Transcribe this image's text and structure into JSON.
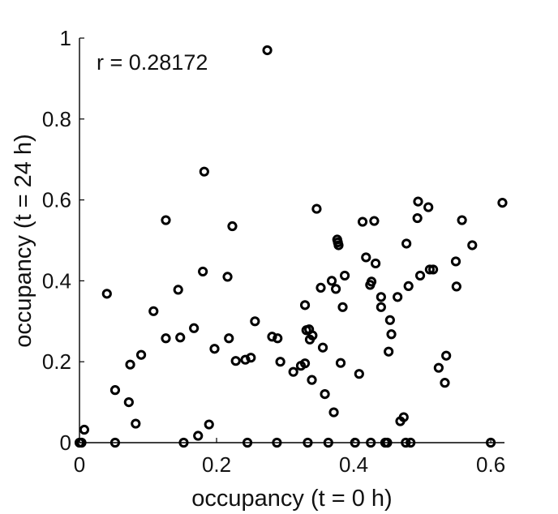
{
  "chart_data": {
    "type": "scatter",
    "xlabel": "occupancy (t = 0 h)",
    "ylabel": "occupancy (t = 24 h)",
    "annotation": "r = 0.28172",
    "xlim": [
      0,
      0.62
    ],
    "ylim": [
      0,
      1
    ],
    "xticks": [
      0,
      0.2,
      0.4,
      0.6
    ],
    "xtick_labels": [
      "0",
      "0.2",
      "0.4",
      "0.6"
    ],
    "yticks": [
      0,
      0.2,
      0.4,
      0.6,
      0.8,
      1
    ],
    "ytick_labels": [
      "0",
      "0.2",
      "0.4",
      "0.6",
      "0.8",
      "1"
    ],
    "grid": false,
    "marker": "circle-open",
    "color": "#000000",
    "points": [
      {
        "x": 0,
        "y": 0
      },
      {
        "x": 0.003,
        "y": 0
      },
      {
        "x": 0.007,
        "y": 0.032
      },
      {
        "x": 0.04,
        "y": 0.368
      },
      {
        "x": 0.052,
        "y": 0.13
      },
      {
        "x": 0.052,
        "y": 0
      },
      {
        "x": 0.072,
        "y": 0.1
      },
      {
        "x": 0.074,
        "y": 0.193
      },
      {
        "x": 0.082,
        "y": 0.047
      },
      {
        "x": 0.09,
        "y": 0.217
      },
      {
        "x": 0.108,
        "y": 0.325
      },
      {
        "x": 0.126,
        "y": 0.55
      },
      {
        "x": 0.126,
        "y": 0.258
      },
      {
        "x": 0.144,
        "y": 0.378
      },
      {
        "x": 0.147,
        "y": 0.26
      },
      {
        "x": 0.152,
        "y": 0
      },
      {
        "x": 0.167,
        "y": 0.283
      },
      {
        "x": 0.173,
        "y": 0.017
      },
      {
        "x": 0.18,
        "y": 0.423
      },
      {
        "x": 0.182,
        "y": 0.67
      },
      {
        "x": 0.189,
        "y": 0.045
      },
      {
        "x": 0.197,
        "y": 0.232
      },
      {
        "x": 0.216,
        "y": 0.41
      },
      {
        "x": 0.218,
        "y": 0.258
      },
      {
        "x": 0.223,
        "y": 0.535
      },
      {
        "x": 0.228,
        "y": 0.202
      },
      {
        "x": 0.242,
        "y": 0.205
      },
      {
        "x": 0.245,
        "y": 0
      },
      {
        "x": 0.25,
        "y": 0.21
      },
      {
        "x": 0.256,
        "y": 0.3
      },
      {
        "x": 0.274,
        "y": 0.97
      },
      {
        "x": 0.281,
        "y": 0.262
      },
      {
        "x": 0.288,
        "y": 0
      },
      {
        "x": 0.289,
        "y": 0.258
      },
      {
        "x": 0.293,
        "y": 0.2
      },
      {
        "x": 0.312,
        "y": 0.175
      },
      {
        "x": 0.323,
        "y": 0.19
      },
      {
        "x": 0.329,
        "y": 0.34
      },
      {
        "x": 0.329,
        "y": 0.196
      },
      {
        "x": 0.331,
        "y": 0.278
      },
      {
        "x": 0.333,
        "y": 0
      },
      {
        "x": 0.335,
        "y": 0.28
      },
      {
        "x": 0.336,
        "y": 0.255
      },
      {
        "x": 0.339,
        "y": 0.155
      },
      {
        "x": 0.34,
        "y": 0.265
      },
      {
        "x": 0.346,
        "y": 0.578
      },
      {
        "x": 0.352,
        "y": 0.383
      },
      {
        "x": 0.355,
        "y": 0.235
      },
      {
        "x": 0.358,
        "y": 0.12
      },
      {
        "x": 0.363,
        "y": 0
      },
      {
        "x": 0.368,
        "y": 0.4
      },
      {
        "x": 0.371,
        "y": 0.075
      },
      {
        "x": 0.374,
        "y": 0.38
      },
      {
        "x": 0.376,
        "y": 0.502
      },
      {
        "x": 0.377,
        "y": 0.495
      },
      {
        "x": 0.378,
        "y": 0.488
      },
      {
        "x": 0.381,
        "y": 0.197
      },
      {
        "x": 0.384,
        "y": 0.335
      },
      {
        "x": 0.387,
        "y": 0.413
      },
      {
        "x": 0.402,
        "y": 0
      },
      {
        "x": 0.408,
        "y": 0.17
      },
      {
        "x": 0.413,
        "y": 0.546
      },
      {
        "x": 0.418,
        "y": 0.458
      },
      {
        "x": 0.424,
        "y": 0.39
      },
      {
        "x": 0.425,
        "y": 0
      },
      {
        "x": 0.426,
        "y": 0.398
      },
      {
        "x": 0.43,
        "y": 0.548
      },
      {
        "x": 0.432,
        "y": 0.443
      },
      {
        "x": 0.44,
        "y": 0.36
      },
      {
        "x": 0.44,
        "y": 0.335
      },
      {
        "x": 0.446,
        "y": 0
      },
      {
        "x": 0.449,
        "y": 0
      },
      {
        "x": 0.451,
        "y": 0.225
      },
      {
        "x": 0.453,
        "y": 0.303
      },
      {
        "x": 0.455,
        "y": 0.268
      },
      {
        "x": 0.464,
        "y": 0.36
      },
      {
        "x": 0.468,
        "y": 0.053
      },
      {
        "x": 0.473,
        "y": 0.063
      },
      {
        "x": 0.476,
        "y": 0
      },
      {
        "x": 0.477,
        "y": 0.492
      },
      {
        "x": 0.48,
        "y": 0.387
      },
      {
        "x": 0.483,
        "y": 0
      },
      {
        "x": 0.493,
        "y": 0.555
      },
      {
        "x": 0.494,
        "y": 0.596
      },
      {
        "x": 0.497,
        "y": 0.413
      },
      {
        "x": 0.509,
        "y": 0.582
      },
      {
        "x": 0.511,
        "y": 0.428
      },
      {
        "x": 0.516,
        "y": 0.428
      },
      {
        "x": 0.524,
        "y": 0.185
      },
      {
        "x": 0.533,
        "y": 0.148
      },
      {
        "x": 0.535,
        "y": 0.215
      },
      {
        "x": 0.549,
        "y": 0.448
      },
      {
        "x": 0.55,
        "y": 0.386
      },
      {
        "x": 0.558,
        "y": 0.55
      },
      {
        "x": 0.573,
        "y": 0.488
      },
      {
        "x": 0.6,
        "y": 0
      },
      {
        "x": 0.617,
        "y": 0.593
      }
    ]
  }
}
